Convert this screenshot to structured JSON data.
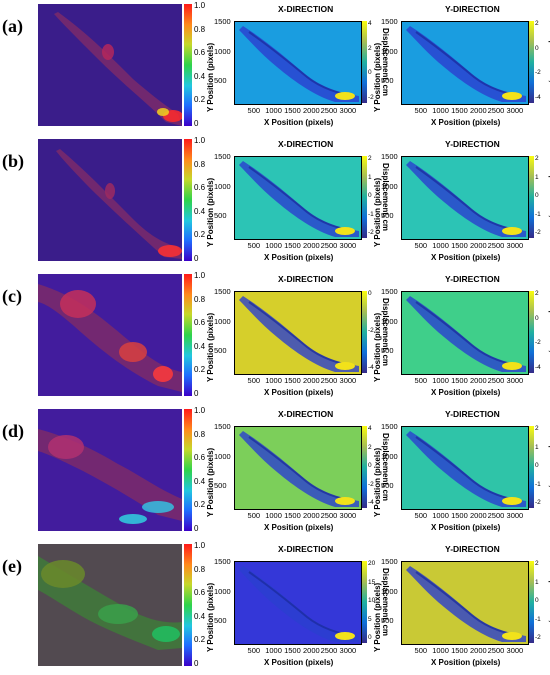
{
  "colors": {
    "flow_background": "#3a1d8a",
    "parula_low": "#352a87",
    "parula_mid": "#21b1a0",
    "parula_high": "#f9fb0e"
  },
  "titles": {
    "x": "X-DIRECTION",
    "y": "Y-DIRECTION"
  },
  "axis_labels": {
    "x": "X Position (pixels)",
    "y": "Y Position (pixels)",
    "displacement": "Displacement, cm"
  },
  "x_ticks": [
    "500",
    "1000",
    "1500",
    "2000",
    "2500",
    "3000"
  ],
  "y_ticks": [
    "1500",
    "1000",
    "500"
  ],
  "flow_colorbar_ticks": [
    "1.0",
    "0.8",
    "0.6",
    "0.4",
    "0.2",
    "0"
  ],
  "rows": [
    {
      "label": "(a)",
      "x_panel": {
        "bg": "#1a9de0",
        "cbar_ticks": [
          "4",
          "2",
          "0",
          "-2"
        ]
      },
      "y_panel": {
        "bg": "#1a9de0",
        "cbar_ticks": [
          "2",
          "0",
          "-2",
          "-4"
        ]
      }
    },
    {
      "label": "(b)",
      "x_panel": {
        "bg": "#2cc4b5",
        "cbar_ticks": [
          "2",
          "1",
          "0",
          "-1",
          "-2"
        ]
      },
      "y_panel": {
        "bg": "#2cc4b5",
        "cbar_ticks": [
          "2",
          "1",
          "0",
          "-1",
          "-2"
        ]
      }
    },
    {
      "label": "(c)",
      "x_panel": {
        "bg": "#d6cf2b",
        "cbar_ticks": [
          "0",
          "-2",
          "-4"
        ]
      },
      "y_panel": {
        "bg": "#3fcf8a",
        "cbar_ticks": [
          "2",
          "0",
          "-2",
          "-4"
        ]
      }
    },
    {
      "label": "(d)",
      "x_panel": {
        "bg": "#7ccf5a",
        "cbar_ticks": [
          "4",
          "2",
          "0",
          "-2",
          "-4"
        ]
      },
      "y_panel": {
        "bg": "#2fc4a8",
        "cbar_ticks": [
          "2",
          "1",
          "0",
          "-1",
          "-2"
        ]
      }
    },
    {
      "label": "(e)",
      "x_panel": {
        "bg": "#3437d8",
        "cbar_ticks": [
          "20",
          "15",
          "10",
          "5",
          "0"
        ]
      },
      "y_panel": {
        "bg": "#c9c935",
        "cbar_ticks": [
          "2",
          "1",
          "0",
          "-1",
          "-2"
        ]
      }
    }
  ]
}
